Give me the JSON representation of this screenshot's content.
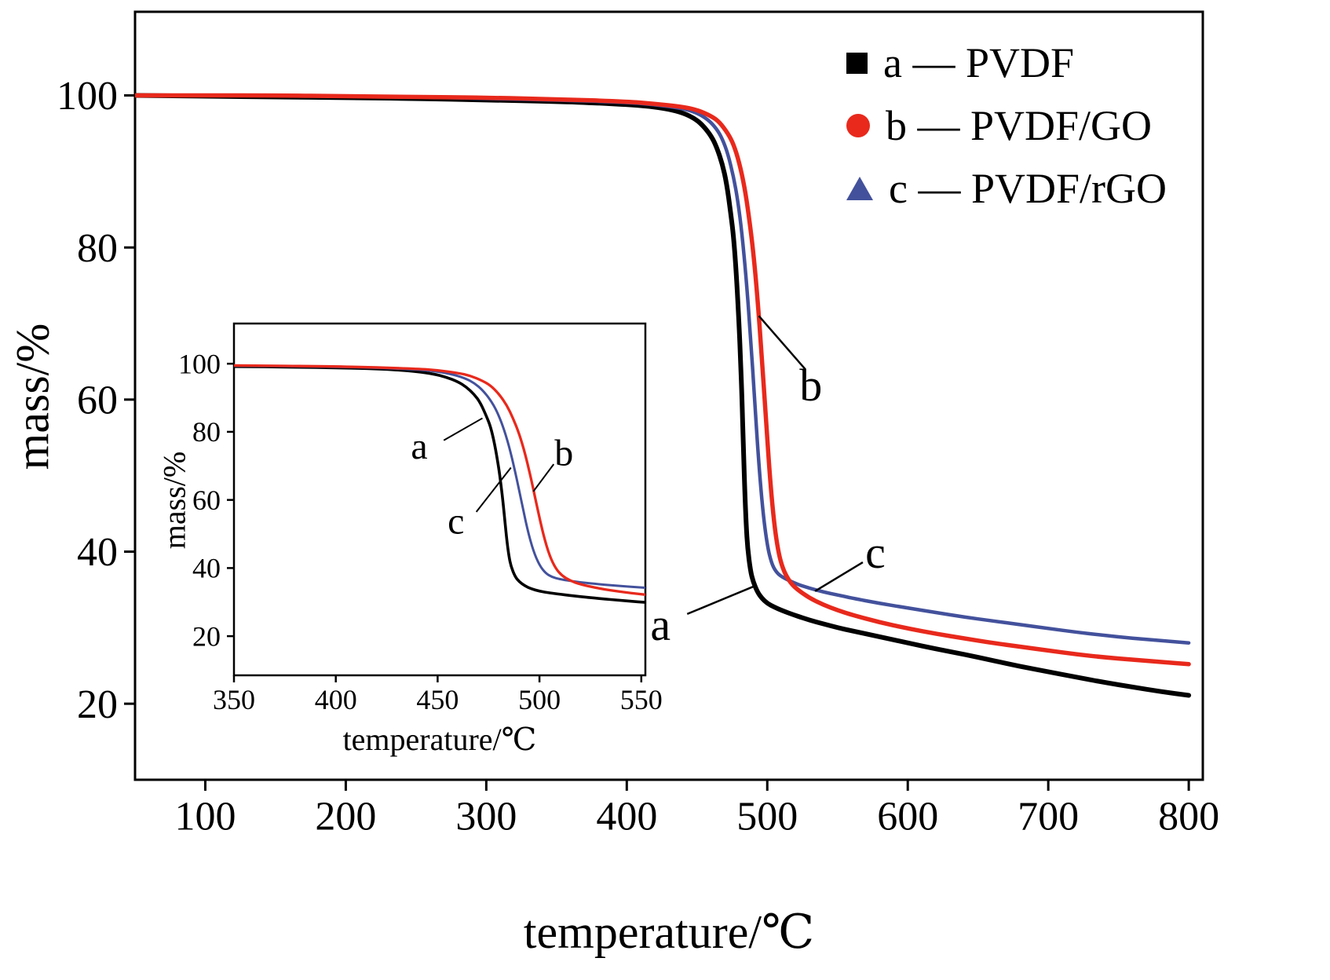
{
  "figure": {
    "background": "#ffffff"
  },
  "legend": {
    "position": "top-right",
    "items": [
      {
        "label": "a — PVDF",
        "marker": "square",
        "color": "#000000"
      },
      {
        "label": "b — PVDF/GO",
        "marker": "circle",
        "color": "#e8291c"
      },
      {
        "label": "c — PVDF/rGO",
        "marker": "triangle",
        "color": "#43519c"
      }
    ]
  },
  "chart_data": [
    {
      "id": "main",
      "type": "line",
      "title": "",
      "xlabel": "temperature/℃",
      "ylabel": "mass/%",
      "xlim": [
        50,
        810
      ],
      "ylim": [
        10,
        111
      ],
      "xticks": [
        100,
        200,
        300,
        400,
        500,
        600,
        700,
        800
      ],
      "yticks": [
        20,
        40,
        60,
        80,
        100
      ],
      "grid": false,
      "legend_position": "top-right",
      "series": [
        {
          "key": "a",
          "name": "a — PVDF",
          "color": "#000000",
          "marker": "square",
          "points": [
            [
              50,
              100
            ],
            [
              100,
              99.9
            ],
            [
              150,
              99.8
            ],
            [
              200,
              99.7
            ],
            [
              250,
              99.6
            ],
            [
              300,
              99.4
            ],
            [
              350,
              99.2
            ],
            [
              380,
              99.0
            ],
            [
              400,
              98.8
            ],
            [
              415,
              98.6
            ],
            [
              430,
              98.2
            ],
            [
              440,
              97.7
            ],
            [
              448,
              97.0
            ],
            [
              454,
              96.1
            ],
            [
              460,
              94.7
            ],
            [
              464,
              93.2
            ],
            [
              468,
              91.0
            ],
            [
              471,
              88.5
            ],
            [
              474,
              84.5
            ],
            [
              476,
              81.5
            ],
            [
              478,
              76.5
            ],
            [
              480,
              69.5
            ],
            [
              481,
              65.0
            ],
            [
              482,
              60.0
            ],
            [
              483,
              54.0
            ],
            [
              484,
              48.0
            ],
            [
              485,
              43.5
            ],
            [
              486,
              40.5
            ],
            [
              488,
              37.5
            ],
            [
              490,
              36.0
            ],
            [
              493,
              34.7
            ],
            [
              496,
              33.9
            ],
            [
              500,
              33.2
            ],
            [
              505,
              32.7
            ],
            [
              510,
              32.3
            ],
            [
              520,
              31.6
            ],
            [
              530,
              31.0
            ],
            [
              540,
              30.5
            ],
            [
              550,
              30.0
            ],
            [
              560,
              29.6
            ],
            [
              580,
              28.8
            ],
            [
              600,
              28.0
            ],
            [
              620,
              27.2
            ],
            [
              640,
              26.5
            ],
            [
              660,
              25.7
            ],
            [
              680,
              24.9
            ],
            [
              700,
              24.2
            ],
            [
              720,
              23.5
            ],
            [
              740,
              22.8
            ],
            [
              760,
              22.2
            ],
            [
              780,
              21.6
            ],
            [
              800,
              21.1
            ]
          ]
        },
        {
          "key": "b",
          "name": "b — PVDF/GO",
          "color": "#e8291c",
          "marker": "circle",
          "points": [
            [
              50,
              100
            ],
            [
              100,
              100
            ],
            [
              150,
              100
            ],
            [
              200,
              99.9
            ],
            [
              250,
              99.8
            ],
            [
              300,
              99.7
            ],
            [
              350,
              99.5
            ],
            [
              400,
              99.2
            ],
            [
              420,
              98.9
            ],
            [
              440,
              98.5
            ],
            [
              450,
              98.1
            ],
            [
              460,
              97.3
            ],
            [
              466,
              96.5
            ],
            [
              472,
              95.0
            ],
            [
              476,
              93.6
            ],
            [
              480,
              91.2
            ],
            [
              484,
              87.8
            ],
            [
              487,
              84.0
            ],
            [
              490,
              79.5
            ],
            [
              493,
              73.5
            ],
            [
              496,
              66.0
            ],
            [
              499,
              57.5
            ],
            [
              502,
              49.5
            ],
            [
              505,
              43.5
            ],
            [
              508,
              39.8
            ],
            [
              511,
              37.8
            ],
            [
              515,
              36.3
            ],
            [
              520,
              35.2
            ],
            [
              530,
              33.9
            ],
            [
              540,
              33.0
            ],
            [
              550,
              32.3
            ],
            [
              560,
              31.7
            ],
            [
              580,
              30.7
            ],
            [
              600,
              29.9
            ],
            [
              620,
              29.2
            ],
            [
              640,
              28.6
            ],
            [
              660,
              28.0
            ],
            [
              680,
              27.5
            ],
            [
              700,
              27.0
            ],
            [
              720,
              26.5
            ],
            [
              740,
              26.1
            ],
            [
              760,
              25.8
            ],
            [
              780,
              25.5
            ],
            [
              800,
              25.2
            ]
          ]
        },
        {
          "key": "c",
          "name": "c — PVDF/rGO",
          "color": "#43519c",
          "marker": "triangle",
          "points": [
            [
              50,
              100
            ],
            [
              100,
              100
            ],
            [
              150,
              100
            ],
            [
              200,
              99.9
            ],
            [
              250,
              99.8
            ],
            [
              300,
              99.6
            ],
            [
              350,
              99.4
            ],
            [
              400,
              99.1
            ],
            [
              420,
              98.8
            ],
            [
              440,
              98.3
            ],
            [
              450,
              97.7
            ],
            [
              458,
              96.8
            ],
            [
              464,
              95.6
            ],
            [
              468,
              94.3
            ],
            [
              472,
              92.3
            ],
            [
              476,
              89.3
            ],
            [
              479,
              86.2
            ],
            [
              482,
              81.8
            ],
            [
              485,
              76.0
            ],
            [
              488,
              68.5
            ],
            [
              491,
              60.0
            ],
            [
              494,
              51.5
            ],
            [
              497,
              45.0
            ],
            [
              500,
              40.8
            ],
            [
              503,
              38.5
            ],
            [
              506,
              37.4
            ],
            [
              510,
              36.7
            ],
            [
              520,
              35.8
            ],
            [
              530,
              35.2
            ],
            [
              540,
              34.7
            ],
            [
              550,
              34.3
            ],
            [
              560,
              33.9
            ],
            [
              580,
              33.2
            ],
            [
              600,
              32.6
            ],
            [
              620,
              32.0
            ],
            [
              640,
              31.4
            ],
            [
              660,
              30.9
            ],
            [
              680,
              30.4
            ],
            [
              700,
              29.9
            ],
            [
              720,
              29.4
            ],
            [
              740,
              29.0
            ],
            [
              760,
              28.6
            ],
            [
              780,
              28.3
            ],
            [
              800,
              28.0
            ]
          ]
        }
      ],
      "annotations": [
        {
          "text": "b",
          "tx": 531,
          "ty": 62,
          "line": [
            [
              527,
              64
            ],
            [
              494,
              71
            ]
          ]
        },
        {
          "text": "c",
          "tx": 577,
          "ty": 40,
          "line": [
            [
              568,
              38.6
            ],
            [
              534,
              34.8
            ]
          ]
        },
        {
          "text": "a",
          "tx": 424,
          "ty": 30.5,
          "line": [
            [
              443,
              31.8
            ],
            [
              490,
              35.4
            ]
          ]
        }
      ]
    },
    {
      "id": "inset",
      "type": "line",
      "title": "",
      "xlabel": "temperature/℃",
      "ylabel": "mass/%",
      "xlim": [
        350,
        552
      ],
      "ylim": [
        8.5,
        111.8
      ],
      "xticks": [
        350,
        400,
        450,
        500,
        550
      ],
      "yticks": [
        20,
        40,
        60,
        80,
        100
      ],
      "grid": false,
      "series_source": "main",
      "annotations": [
        {
          "text": "a",
          "tx": 441,
          "ty": 76,
          "line": [
            [
              453,
              77.5
            ],
            [
              472,
              84
            ]
          ]
        },
        {
          "text": "b",
          "tx": 512,
          "ty": 74,
          "line": [
            [
              507,
              70.5
            ],
            [
              497,
              62.5
            ]
          ]
        },
        {
          "text": "c",
          "tx": 459,
          "ty": 54,
          "line": [
            [
              469,
              56.5
            ],
            [
              486,
              69.5
            ]
          ]
        }
      ]
    }
  ]
}
